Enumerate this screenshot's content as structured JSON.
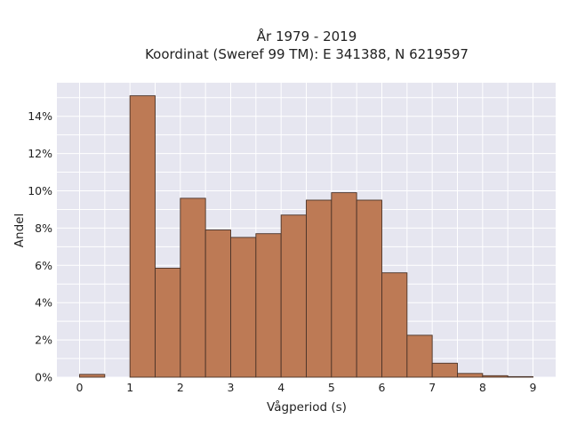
{
  "chart_data": {
    "type": "bar",
    "title_lines": [
      "År 1979 - 2019",
      "Koordinat (Sweref 99 TM): E 341388, N 6219597"
    ],
    "xlabel": "Vågperiod (s)",
    "ylabel": "Andel",
    "bin_width": 0.5,
    "bins": [
      {
        "start": 0.0,
        "value": 0.15
      },
      {
        "start": 1.0,
        "value": 15.1
      },
      {
        "start": 1.5,
        "value": 5.85
      },
      {
        "start": 2.0,
        "value": 9.6
      },
      {
        "start": 2.5,
        "value": 7.9
      },
      {
        "start": 3.0,
        "value": 7.5
      },
      {
        "start": 3.5,
        "value": 7.7
      },
      {
        "start": 4.0,
        "value": 8.7
      },
      {
        "start": 4.5,
        "value": 9.5
      },
      {
        "start": 5.0,
        "value": 9.9
      },
      {
        "start": 5.5,
        "value": 9.5
      },
      {
        "start": 6.0,
        "value": 5.6
      },
      {
        "start": 6.5,
        "value": 2.25
      },
      {
        "start": 7.0,
        "value": 0.75
      },
      {
        "start": 7.5,
        "value": 0.2
      },
      {
        "start": 8.0,
        "value": 0.08
      },
      {
        "start": 8.5,
        "value": 0.03
      }
    ],
    "xlim": [
      -0.45,
      9.45
    ],
    "ylim": [
      0,
      15.8
    ],
    "xticks": [
      0,
      1,
      2,
      3,
      4,
      5,
      6,
      7,
      8,
      9
    ],
    "yticks": [
      0,
      2,
      4,
      6,
      8,
      10,
      12,
      14
    ],
    "xtick_labels": [
      "0",
      "1",
      "2",
      "3",
      "4",
      "5",
      "6",
      "7",
      "8",
      "9"
    ],
    "ytick_labels": [
      "0%",
      "2%",
      "4%",
      "6%",
      "8%",
      "10%",
      "12%",
      "14%"
    ],
    "grid": true,
    "colors": {
      "bar": "#bd7a55",
      "bar_edge": "#4a3328",
      "plot_bg": "#e6e6f0",
      "grid": "#ffffff"
    }
  }
}
